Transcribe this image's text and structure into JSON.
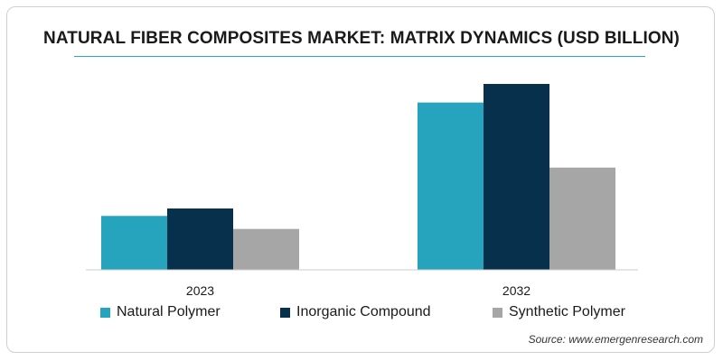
{
  "title": "NATURAL FIBER COMPOSITES MARKET: MATRIX DYNAMICS (USD BILLION)",
  "source": "Source: www.emergenresearch.com",
  "colors": {
    "natural_polymer": "#26a3bd",
    "inorganic_compound": "#06304b",
    "synthetic_polymer": "#a6a6a6",
    "axis": "#cccccc",
    "accent_rule": "#2aa7c0"
  },
  "chart_data": {
    "type": "bar",
    "title": "NATURAL FIBER COMPOSITES MARKET: MATRIX DYNAMICS (USD BILLION)",
    "xlabel": "",
    "ylabel": "",
    "ylim": [
      0,
      100
    ],
    "grid": false,
    "legend_position": "bottom",
    "categories": [
      "2023",
      "2032"
    ],
    "series": [
      {
        "name": "Natural Polymer",
        "color": "#26a3bd",
        "values": [
          29,
          90
        ]
      },
      {
        "name": "Inorganic Compound",
        "color": "#06304b",
        "values": [
          33,
          100
        ]
      },
      {
        "name": "Synthetic Polymer",
        "color": "#a6a6a6",
        "values": [
          22,
          55
        ]
      }
    ]
  }
}
